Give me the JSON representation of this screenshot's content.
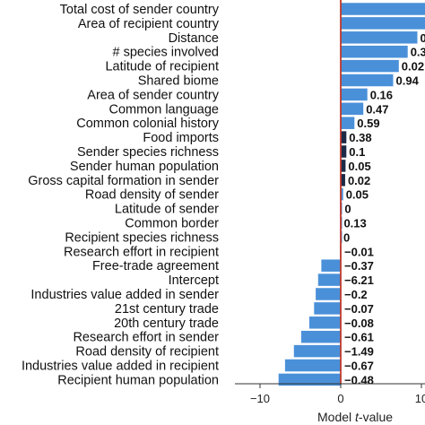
{
  "chart_data": {
    "type": "bar",
    "orientation": "horizontal",
    "xlabel_text": "Model ",
    "xlabel_italic": "t",
    "xlabel_suffix": "-value",
    "xlim": [
      -14,
      12
    ],
    "xticks": [
      -10,
      0,
      10
    ],
    "xtick_labels": [
      "−10",
      "0",
      "10"
    ],
    "reference_line": {
      "x": 0,
      "color": "#c0392b"
    },
    "colors": {
      "light_bar": "#4a90d9",
      "dark_bar": "#1b2a47"
    },
    "categories": [
      "Total cost of sender country",
      "Area of recipient country",
      "Distance",
      "# species involved",
      "Latitude of recipient",
      "Shared biome",
      "Area of sender country",
      "Common language",
      "Common colonial history",
      "Food imports",
      "Sender species richness",
      "Sender human population",
      "Gross capital formation in sender",
      "Road density of sender",
      "Latitude of sender",
      "Common border",
      "Recipient species richness",
      "Research effort in recipient",
      "Free-trade agreement",
      "Intercept",
      "Industries value added in sender",
      "21st century trade",
      "20th century trade",
      "Research effort in sender",
      "Road density of recipient",
      "Industries value added in recipient",
      "Recipient human population"
    ],
    "values": [
      12.0,
      10.5,
      9.5,
      8.3,
      7.2,
      6.5,
      3.3,
      2.8,
      1.7,
      0.7,
      0.7,
      0.6,
      0.55,
      0.3,
      0.15,
      0.05,
      0.0,
      -0.1,
      -2.4,
      -2.8,
      -3.1,
      -3.3,
      -3.9,
      -4.9,
      -5.8,
      -6.9,
      -7.7
    ],
    "bar_colors": [
      "light",
      "light",
      "light",
      "light",
      "light",
      "light",
      "light",
      "light",
      "light",
      "dark",
      "dark",
      "dark",
      "dark",
      "light",
      "light",
      "light",
      "light",
      "light",
      "light",
      "light",
      "light",
      "light",
      "light",
      "light",
      "light",
      "light",
      "light"
    ],
    "value_labels": [
      "",
      "",
      "0",
      "0.3",
      "0.02",
      "0.94",
      "0.16",
      "0.47",
      "0.59",
      "0.38",
      "0.1",
      "0.05",
      "0.02",
      "0.05",
      "0",
      "0.13",
      "0",
      "−0.01",
      "−0.37",
      "−6.21",
      "−0.2",
      "−0.07",
      "−0.08",
      "−0.61",
      "−1.49",
      "−0.67",
      "−0.48"
    ]
  }
}
